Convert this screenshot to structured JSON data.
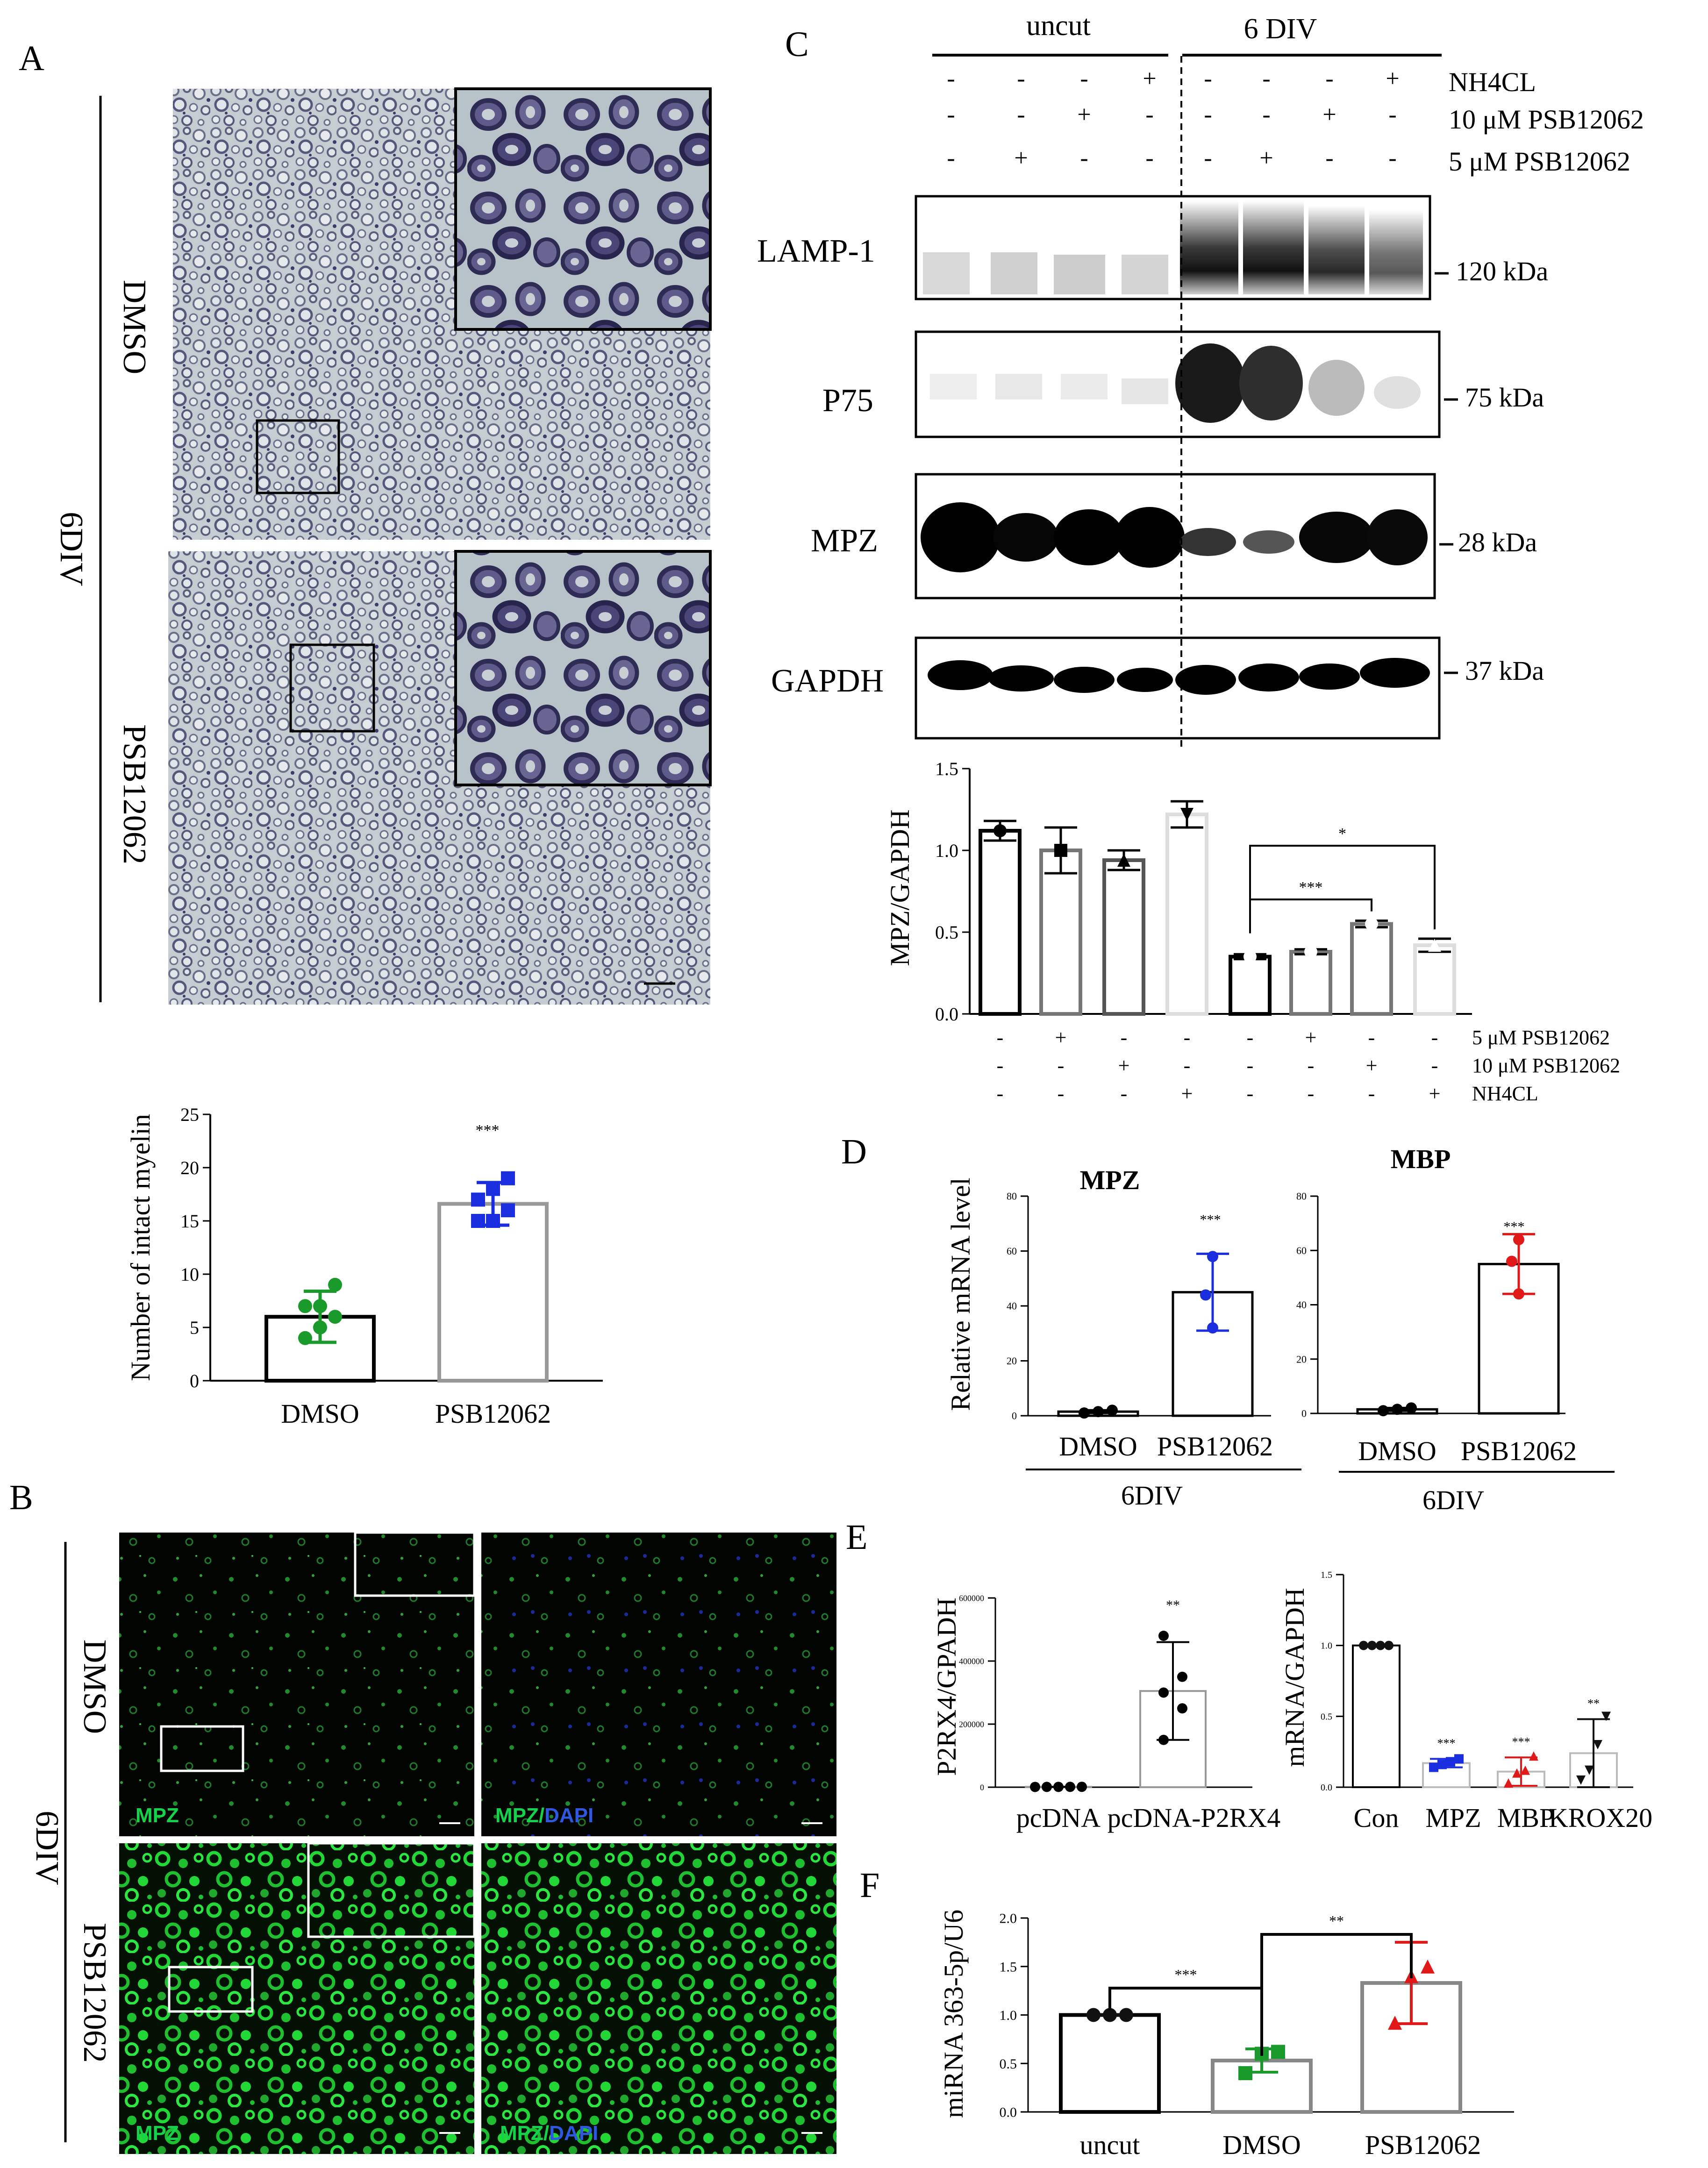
{
  "panels": {
    "A": "A",
    "B": "B",
    "C": "C",
    "D": "D",
    "E": "E",
    "F": "F"
  },
  "panelA": {
    "group_label": "6DIV",
    "row_labels": [
      "DMSO",
      "PSB12062"
    ],
    "chart_data": {
      "type": "bar",
      "categories": [
        "DMSO",
        "PSB12062"
      ],
      "values": [
        6,
        16.6
      ],
      "errors": [
        2.4,
        2
      ],
      "points": [
        [
          4,
          5,
          6,
          7,
          7,
          9
        ],
        [
          15,
          15,
          16,
          17,
          18,
          19
        ]
      ],
      "ylabel": "Number of intact myelin",
      "ylim": [
        0,
        25
      ],
      "yticks": [
        "0",
        "5",
        "10",
        "15",
        "20",
        "25"
      ],
      "significance": "***",
      "colors": {
        "DMSO": "#1a9a2a",
        "PSB12062": "#1a2ee0"
      }
    }
  },
  "panelB": {
    "group_label": "6DIV",
    "row_labels": [
      "DMSO",
      "PSB12062"
    ],
    "stain_left": "MPZ",
    "stain_right_a": "MPZ/",
    "stain_right_b": "DAPI",
    "colors": {
      "mpz": "#14d24a",
      "dapi": "#2f58e0"
    }
  },
  "panelC": {
    "header_uncut": "uncut",
    "header_div": "6 DIV",
    "treatment_rows": [
      {
        "name": "NH4CL",
        "signs": [
          "-",
          "-",
          "-",
          "+",
          "-",
          "-",
          "-",
          "+"
        ]
      },
      {
        "name": "10 μM PSB12062",
        "signs": [
          "-",
          "-",
          "+",
          "-",
          "-",
          "-",
          "+",
          "-"
        ]
      },
      {
        "name": "5 μM PSB12062",
        "signs": [
          "-",
          "+",
          "-",
          "-",
          "-",
          "+",
          "-",
          "-"
        ]
      }
    ],
    "blots": [
      {
        "name": "LAMP-1",
        "mw": "120 kDa"
      },
      {
        "name": "P75",
        "mw": "75 kDa"
      },
      {
        "name": "MPZ",
        "mw": "28 kDa"
      },
      {
        "name": "GAPDH",
        "mw": "37 kDa"
      }
    ],
    "chart_data": {
      "type": "bar",
      "values": [
        1.12,
        1.0,
        0.94,
        1.22,
        0.35,
        0.38,
        0.55,
        0.42
      ],
      "errors": [
        0.06,
        0.14,
        0.06,
        0.08,
        0.015,
        0.015,
        0.02,
        0.04
      ],
      "ylabel": "MPZ/GAPDH",
      "ylim": [
        0,
        1.5
      ],
      "yticks": [
        "0.0",
        "0.5",
        "1.0",
        "1.5"
      ],
      "significance": [
        {
          "label": "*",
          "from": 4,
          "to": 7
        },
        {
          "label": "***",
          "from": 4,
          "to": 6
        }
      ],
      "condition_rows": [
        {
          "name": "5 μM PSB12062",
          "signs": [
            "-",
            "+",
            "-",
            "-",
            "-",
            "+",
            "-",
            "-"
          ]
        },
        {
          "name": "10 μM PSB12062",
          "signs": [
            "-",
            "-",
            "+",
            "-",
            "-",
            "-",
            "+",
            "-"
          ]
        },
        {
          "name": "NH4CL",
          "signs": [
            "-",
            "-",
            "-",
            "+",
            "-",
            "-",
            "-",
            "+"
          ]
        }
      ]
    }
  },
  "panelD": {
    "ylabel": "Relative mRNA level",
    "group_label": "6DIV",
    "charts": [
      {
        "title": "MPZ",
        "type": "bar",
        "categories": [
          "DMSO",
          "PSB12062"
        ],
        "values": [
          1.5,
          45
        ],
        "errors": [
          0.5,
          14
        ],
        "points": [
          [
            1,
            1.5,
            2
          ],
          [
            32,
            44,
            58
          ]
        ],
        "ylim": [
          0,
          80
        ],
        "yticks": [
          "0",
          "20",
          "40",
          "60",
          "80"
        ],
        "significance": "***",
        "color": "#1a2ee0"
      },
      {
        "title": "MBP",
        "type": "bar",
        "categories": [
          "DMSO",
          "PSB12062"
        ],
        "values": [
          1.5,
          55
        ],
        "errors": [
          0.5,
          11
        ],
        "points": [
          [
            1,
            1.5,
            2
          ],
          [
            44,
            56,
            64
          ]
        ],
        "ylim": [
          0,
          80
        ],
        "yticks": [
          "0",
          "20",
          "40",
          "60",
          "80"
        ],
        "significance": "***",
        "color": "#e01818"
      }
    ]
  },
  "panelE": {
    "charts": [
      {
        "type": "bar",
        "ylabel": "P2RX4/GPADH",
        "categories": [
          "pcDNA",
          "pcDNA-P2RX4"
        ],
        "values": [
          1000,
          305000
        ],
        "errors": [
          500,
          155000
        ],
        "points": [
          [
            800,
            900,
            1000,
            1100,
            1200
          ],
          [
            150000,
            250000,
            300000,
            350000,
            480000
          ]
        ],
        "ylim": [
          0,
          600000
        ],
        "yticks": [
          "0",
          "200000",
          "400000",
          "600000"
        ],
        "significance": "**"
      },
      {
        "type": "bar",
        "ylabel": "mRNA/GAPDH",
        "categories": [
          "Con",
          "MPZ",
          "MBP",
          "KROX20"
        ],
        "values": [
          1.0,
          0.17,
          0.11,
          0.24
        ],
        "errors": [
          0.005,
          0.03,
          0.1,
          0.24
        ],
        "points": [
          [
            1,
            1,
            1,
            1
          ],
          [
            0.14,
            0.16,
            0.18,
            0.2
          ],
          [
            0.03,
            0.1,
            0.12,
            0.22
          ],
          [
            0.05,
            0.12,
            0.3,
            0.5
          ]
        ],
        "ylim": [
          0,
          1.5
        ],
        "yticks": [
          "0.0",
          "0.5",
          "1.0",
          "1.5"
        ],
        "significance": [
          "",
          "***",
          "***",
          "**"
        ],
        "colors": [
          "#111111",
          "#1a2ee0",
          "#e01818",
          "#111111"
        ]
      }
    ]
  },
  "panelF": {
    "chart_data": {
      "type": "bar",
      "categories": [
        "uncut",
        "DMSO",
        "PSB12062"
      ],
      "values": [
        1.0,
        0.53,
        1.33
      ],
      "errors": [
        0.005,
        0.12,
        0.42
      ],
      "points": [
        [
          1,
          1,
          1
        ],
        [
          0.4,
          0.6,
          0.62
        ],
        [
          0.92,
          1.4,
          1.5
        ]
      ],
      "ylabel": "miRNA 363-5p/U6",
      "ylim": [
        0,
        2.0
      ],
      "yticks": [
        "0.0",
        "0.5",
        "1.0",
        "1.5",
        "2.0"
      ],
      "significance": [
        {
          "label": "***",
          "from": 0,
          "to": 1
        },
        {
          "label": "**",
          "from": 1,
          "to": 2
        }
      ],
      "colors": [
        "#111111",
        "#1a9a2a",
        "#e01818"
      ]
    }
  }
}
